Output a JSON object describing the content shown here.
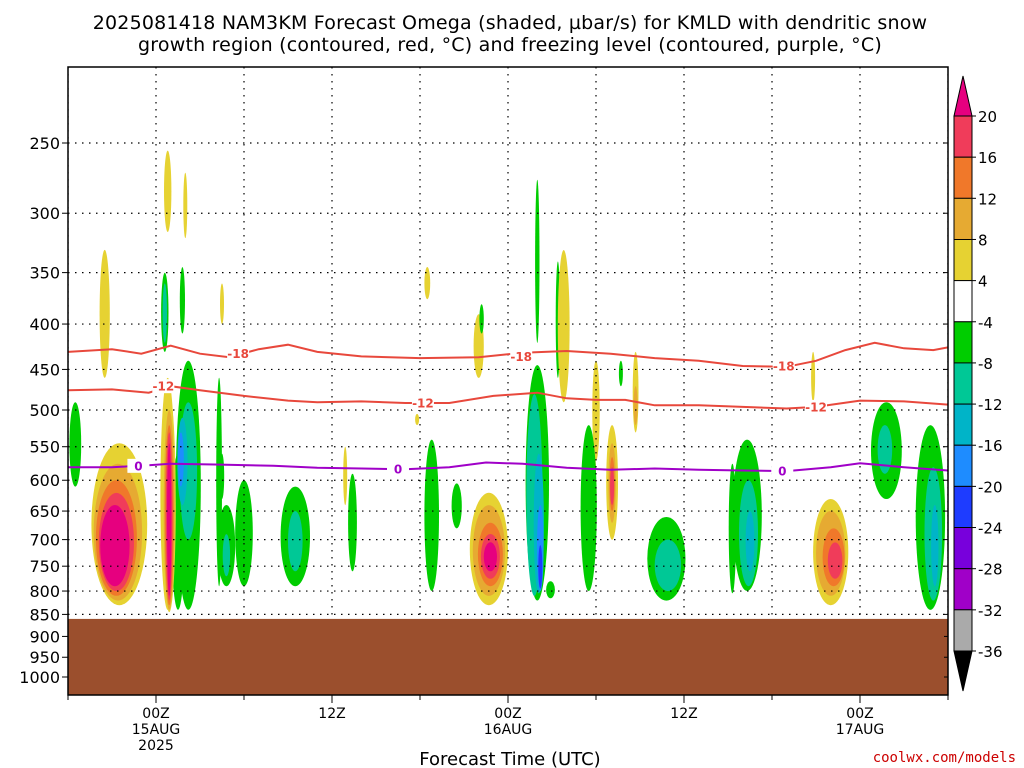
{
  "chart_data": {
    "type": "heatmap",
    "title_lines": [
      "2025081418 NAM3KM Forecast Omega (shaded, µbar/s) for KMLD with dendritic snow",
      "growth region (contoured, red, °C) and freezing level (contoured, purple, °C)"
    ],
    "xlabel": "Forecast Time (UTC)",
    "credit": "coolwx.com/models",
    "y_axis": {
      "scale": "log-pressure",
      "inverted": true,
      "ticks": [
        "250",
        "300",
        "350",
        "400",
        "450",
        "500",
        "550",
        "600",
        "650",
        "700",
        "750",
        "800",
        "850",
        "900",
        "950",
        "1000"
      ],
      "tick_values": [
        250,
        300,
        350,
        400,
        450,
        500,
        550,
        600,
        650,
        700,
        750,
        800,
        850,
        900,
        950,
        1000
      ]
    },
    "x_axis": {
      "hours_ticks": [
        -6,
        0,
        6,
        12,
        18,
        24,
        30,
        36,
        42,
        48,
        54
      ],
      "major_ticks": [
        {
          "hour": 0,
          "lines": [
            "00Z",
            "15AUG",
            "2025"
          ]
        },
        {
          "hour": 12,
          "lines": [
            "12Z"
          ]
        },
        {
          "hour": 24,
          "lines": [
            "00Z",
            "16AUG"
          ]
        },
        {
          "hour": 36,
          "lines": [
            "12Z"
          ]
        },
        {
          "hour": 48,
          "lines": [
            "00Z",
            "17AUG"
          ]
        }
      ],
      "range_hours": [
        -6,
        54
      ]
    },
    "grid": true,
    "colorbar": {
      "labels": [
        "20",
        "16",
        "12",
        "8",
        "4",
        "-4",
        "-8",
        "-12",
        "-16",
        "-20",
        "-24",
        "-28",
        "-32",
        "-36"
      ],
      "colors": [
        "#f03c5a",
        "#f0782a",
        "#e6aa32",
        "#e6d232",
        "#ffffff",
        "#00cd00",
        "#00c896",
        "#00b4c8",
        "#1e8cff",
        "#1e3cff",
        "#7800dc",
        "#a000c8",
        "#aaaaaa"
      ],
      "top_arrow_color": "#e6007f",
      "bottom_arrow_color": "#000000"
    },
    "ground_color": "#9b4f2d",
    "ground_pressure": 860,
    "omega_bands": [
      {
        "name": "4",
        "color": "#e6d232"
      },
      {
        "name": "8",
        "color": "#e6aa32"
      },
      {
        "name": "12",
        "color": "#f0782a"
      },
      {
        "name": "16",
        "color": "#f03c5a"
      },
      {
        "name": "20",
        "color": "#e6007f"
      },
      {
        "name": "-4",
        "color": "#00cd00"
      },
      {
        "name": "-8",
        "color": "#00c896"
      },
      {
        "name": "-12",
        "color": "#00b4c8"
      },
      {
        "name": "-16",
        "color": "#1e8cff"
      },
      {
        "name": "-20",
        "color": "#1e3cff"
      }
    ],
    "omega_blobs": [
      {
        "band": "-4",
        "hour": -5.5,
        "p": [
          490,
          610
        ],
        "w": 0.8
      },
      {
        "band": "4",
        "hour": -3.5,
        "p": [
          330,
          460
        ],
        "w": 0.7
      },
      {
        "band": "4",
        "hour": -2.5,
        "p": [
          545,
          830
        ],
        "w": 3.8
      },
      {
        "band": "8",
        "hour": -2.6,
        "p": [
          575,
          820
        ],
        "w": 3.3
      },
      {
        "band": "12",
        "hour": -2.7,
        "p": [
          600,
          810
        ],
        "w": 2.8
      },
      {
        "band": "16",
        "hour": -2.7,
        "p": [
          620,
          800
        ],
        "w": 2.4
      },
      {
        "band": "20",
        "hour": -2.8,
        "p": [
          640,
          790
        ],
        "w": 2.0
      },
      {
        "band": "4",
        "hour": 0.8,
        "p": [
          460,
          840
        ],
        "w": 1.0
      },
      {
        "band": "-4",
        "hour": 0.6,
        "p": [
          350,
          430
        ],
        "w": 0.5
      },
      {
        "band": "-8",
        "hour": 0.6,
        "p": [
          360,
          420
        ],
        "w": 0.3
      },
      {
        "band": "4",
        "hour": 0.8,
        "p": [
          255,
          315
        ],
        "w": 0.5
      },
      {
        "band": "4",
        "hour": 2.0,
        "p": [
          270,
          320
        ],
        "w": 0.2
      },
      {
        "band": "-4",
        "hour": 1.5,
        "p": [
          560,
          840
        ],
        "w": 0.9
      },
      {
        "band": "4",
        "hour": 0.9,
        "p": [
          480,
          845
        ],
        "w": 0.9
      },
      {
        "band": "8",
        "hour": 0.9,
        "p": [
          500,
          840
        ],
        "w": 0.75
      },
      {
        "band": "12",
        "hour": 0.9,
        "p": [
          520,
          830
        ],
        "w": 0.6
      },
      {
        "band": "16",
        "hour": 0.9,
        "p": [
          530,
          820
        ],
        "w": 0.45
      },
      {
        "band": "20",
        "hour": 0.9,
        "p": [
          545,
          810
        ],
        "w": 0.3
      },
      {
        "band": "-4",
        "hour": 2.2,
        "p": [
          440,
          840
        ],
        "w": 1.7
      },
      {
        "band": "-8",
        "hour": 2.2,
        "p": [
          490,
          700
        ],
        "w": 1.2
      },
      {
        "band": "-12",
        "hour": 1.8,
        "p": [
          510,
          640
        ],
        "w": 0.7
      },
      {
        "band": "-16",
        "hour": 1.7,
        "p": [
          530,
          610
        ],
        "w": 0.4
      },
      {
        "band": "-4",
        "hour": 1.8,
        "p": [
          345,
          410
        ],
        "w": 0.35
      },
      {
        "band": "-4",
        "hour": 4.5,
        "p": [
          560,
          630
        ],
        "w": 0.3
      },
      {
        "band": "-4",
        "hour": 4.8,
        "p": [
          640,
          790
        ],
        "w": 1.2
      },
      {
        "band": "-8",
        "hour": 4.8,
        "p": [
          690,
          770
        ],
        "w": 0.5
      },
      {
        "band": "-4",
        "hour": 4.3,
        "p": [
          460,
          790
        ],
        "w": 0.4
      },
      {
        "band": "-4",
        "hour": 6.0,
        "p": [
          600,
          790
        ],
        "w": 1.2
      },
      {
        "band": "4",
        "hour": 4.5,
        "p": [
          360,
          400
        ],
        "w": 0.2
      },
      {
        "band": "-4",
        "hour": 9.5,
        "p": [
          610,
          790
        ],
        "w": 2.0
      },
      {
        "band": "-8",
        "hour": 9.5,
        "p": [
          650,
          760
        ],
        "w": 1.0
      },
      {
        "band": "-4",
        "hour": 13.4,
        "p": [
          590,
          760
        ],
        "w": 0.6
      },
      {
        "band": "4",
        "hour": 12.9,
        "p": [
          550,
          640
        ],
        "w": 0.2
      },
      {
        "band": "4",
        "hour": 18.5,
        "p": [
          345,
          375
        ],
        "w": 0.4
      },
      {
        "band": "4",
        "hour": 17.8,
        "p": [
          505,
          520
        ],
        "w": 0.1
      },
      {
        "band": "-4",
        "hour": 18.8,
        "p": [
          540,
          800
        ],
        "w": 1.0
      },
      {
        "band": "-4",
        "hour": 20.5,
        "p": [
          605,
          680
        ],
        "w": 0.7
      },
      {
        "band": "4",
        "hour": 22.7,
        "p": [
          620,
          830
        ],
        "w": 2.6
      },
      {
        "band": "8",
        "hour": 22.7,
        "p": [
          640,
          810
        ],
        "w": 2.2
      },
      {
        "band": "12",
        "hour": 22.8,
        "p": [
          670,
          790
        ],
        "w": 1.7
      },
      {
        "band": "16",
        "hour": 22.8,
        "p": [
          690,
          775
        ],
        "w": 1.3
      },
      {
        "band": "20",
        "hour": 22.8,
        "p": [
          705,
          760
        ],
        "w": 0.9
      },
      {
        "band": "4",
        "hour": 22.0,
        "p": [
          390,
          460
        ],
        "w": 0.7
      },
      {
        "band": "-4",
        "hour": 22.2,
        "p": [
          380,
          410
        ],
        "w": 0.3
      },
      {
        "band": "-4",
        "hour": 26.0,
        "p": [
          275,
          420
        ],
        "w": 0.3
      },
      {
        "band": "-4",
        "hour": 26.0,
        "p": [
          445,
          820
        ],
        "w": 1.6
      },
      {
        "band": "-8",
        "hour": 25.8,
        "p": [
          480,
          810
        ],
        "w": 1.1
      },
      {
        "band": "-12",
        "hour": 26.1,
        "p": [
          560,
          805
        ],
        "w": 0.7
      },
      {
        "band": "-16",
        "hour": 26.2,
        "p": [
          640,
          800
        ],
        "w": 0.45
      },
      {
        "band": "-20",
        "hour": 26.2,
        "p": [
          710,
          795
        ],
        "w": 0.25
      },
      {
        "band": "-4",
        "hour": 27.4,
        "p": [
          340,
          460
        ],
        "w": 0.3
      },
      {
        "band": "4",
        "hour": 27.8,
        "p": [
          330,
          490
        ],
        "w": 0.8
      },
      {
        "band": "4",
        "hour": 29.7,
        "p": [
          550,
          620
        ],
        "w": 0.6
      },
      {
        "band": "4",
        "hour": 30.0,
        "p": [
          440,
          570
        ],
        "w": 0.5
      },
      {
        "band": "-4",
        "hour": 29.5,
        "p": [
          520,
          800
        ],
        "w": 1.1
      },
      {
        "band": "-4",
        "hour": 26.9,
        "p": [
          780,
          815
        ],
        "w": 0.6
      },
      {
        "band": "4",
        "hour": 31.1,
        "p": [
          520,
          700
        ],
        "w": 0.8
      },
      {
        "band": "8",
        "hour": 31.1,
        "p": [
          545,
          670
        ],
        "w": 0.5
      },
      {
        "band": "12",
        "hour": 31.1,
        "p": [
          565,
          650
        ],
        "w": 0.35
      },
      {
        "band": "16",
        "hour": 31.1,
        "p": [
          580,
          640
        ],
        "w": 0.22
      },
      {
        "band": "4",
        "hour": 32.7,
        "p": [
          430,
          530
        ],
        "w": 0.4
      },
      {
        "band": "8",
        "hour": 32.7,
        "p": [
          470,
          520
        ],
        "w": 0.2
      },
      {
        "band": "-4",
        "hour": 31.7,
        "p": [
          440,
          470
        ],
        "w": 0.15
      },
      {
        "band": "-4",
        "hour": 34.8,
        "p": [
          660,
          820
        ],
        "w": 2.6
      },
      {
        "band": "-8",
        "hour": 34.9,
        "p": [
          700,
          800
        ],
        "w": 1.8
      },
      {
        "band": "-4",
        "hour": 39.3,
        "p": [
          575,
          805
        ],
        "w": 0.5
      },
      {
        "band": "-4",
        "hour": 40.3,
        "p": [
          540,
          800
        ],
        "w": 2.0
      },
      {
        "band": "-8",
        "hour": 40.4,
        "p": [
          600,
          790
        ],
        "w": 1.3
      },
      {
        "band": "-12",
        "hour": 40.5,
        "p": [
          650,
          760
        ],
        "w": 0.6
      },
      {
        "band": "4",
        "hour": 44.8,
        "p": [
          430,
          490
        ],
        "w": 0.2
      },
      {
        "band": "4",
        "hour": 46.0,
        "p": [
          630,
          830
        ],
        "w": 2.4
      },
      {
        "band": "8",
        "hour": 46.0,
        "p": [
          650,
          810
        ],
        "w": 2.0
      },
      {
        "band": "12",
        "hour": 46.2,
        "p": [
          680,
          790
        ],
        "w": 1.5
      },
      {
        "band": "16",
        "hour": 46.3,
        "p": [
          705,
          775
        ],
        "w": 1.0
      },
      {
        "band": "-4",
        "hour": 49.8,
        "p": [
          490,
          630
        ],
        "w": 2.1
      },
      {
        "band": "-8",
        "hour": 49.7,
        "p": [
          520,
          590
        ],
        "w": 1.0
      },
      {
        "band": "-4",
        "hour": 52.8,
        "p": [
          520,
          840
        ],
        "w": 2.0
      },
      {
        "band": "-8",
        "hour": 53.0,
        "p": [
          580,
          820
        ],
        "w": 1.2
      },
      {
        "band": "-12",
        "hour": 53.1,
        "p": [
          640,
          790
        ],
        "w": 0.5
      }
    ],
    "isotherms": [
      {
        "label": "-18",
        "color": "#e8483c",
        "points": [
          [
            -6,
            430
          ],
          [
            -3,
            427
          ],
          [
            -1,
            432
          ],
          [
            1,
            423
          ],
          [
            3,
            432
          ],
          [
            5,
            436
          ],
          [
            7,
            427
          ],
          [
            9,
            422
          ],
          [
            11,
            430
          ],
          [
            14,
            435
          ],
          [
            18,
            437
          ],
          [
            22,
            436
          ],
          [
            25,
            431
          ],
          [
            28,
            429
          ],
          [
            31,
            432
          ],
          [
            34,
            437
          ],
          [
            37,
            440
          ],
          [
            40,
            446
          ],
          [
            43,
            447
          ],
          [
            45,
            440
          ],
          [
            47,
            428
          ],
          [
            49,
            420
          ],
          [
            51,
            426
          ],
          [
            53,
            428
          ],
          [
            54,
            425
          ]
        ],
        "label_positions": [
          [
            5.6,
            432
          ],
          [
            24.9,
            435
          ],
          [
            42.8,
            446
          ]
        ]
      },
      {
        "label": "-12",
        "color": "#e8483c",
        "points": [
          [
            -6,
            475
          ],
          [
            -3,
            474
          ],
          [
            -0.5,
            478
          ],
          [
            1,
            470
          ],
          [
            3,
            475
          ],
          [
            6,
            482
          ],
          [
            9,
            488
          ],
          [
            11,
            490
          ],
          [
            14,
            489
          ],
          [
            17,
            491
          ],
          [
            20,
            491
          ],
          [
            23,
            482
          ],
          [
            26,
            478
          ],
          [
            28,
            485
          ],
          [
            30,
            487
          ],
          [
            32,
            487
          ],
          [
            34,
            494
          ],
          [
            37,
            494
          ],
          [
            40,
            496
          ],
          [
            43,
            498
          ],
          [
            45,
            496
          ],
          [
            48,
            488
          ],
          [
            51,
            489
          ],
          [
            54,
            493
          ]
        ],
        "label_positions": [
          [
            0.5,
            470
          ],
          [
            18.2,
            491
          ],
          [
            45.0,
            496
          ]
        ]
      },
      {
        "label": "0",
        "color": "#a000c8",
        "points": [
          [
            -6,
            580
          ],
          [
            -3,
            580
          ],
          [
            -1,
            578
          ],
          [
            1,
            575
          ],
          [
            4,
            576
          ],
          [
            8,
            578
          ],
          [
            11,
            581
          ],
          [
            14,
            582
          ],
          [
            17,
            583
          ],
          [
            20,
            580
          ],
          [
            22.5,
            573
          ],
          [
            25,
            575
          ],
          [
            28,
            581
          ],
          [
            31,
            584
          ],
          [
            34,
            582
          ],
          [
            37,
            584
          ],
          [
            40,
            585
          ],
          [
            43,
            586
          ],
          [
            46,
            580
          ],
          [
            48,
            574
          ],
          [
            51,
            580
          ],
          [
            54,
            585
          ]
        ],
        "label_positions": [
          [
            -1.2,
            578
          ],
          [
            16.5,
            583
          ],
          [
            42.7,
            586
          ]
        ]
      }
    ]
  }
}
